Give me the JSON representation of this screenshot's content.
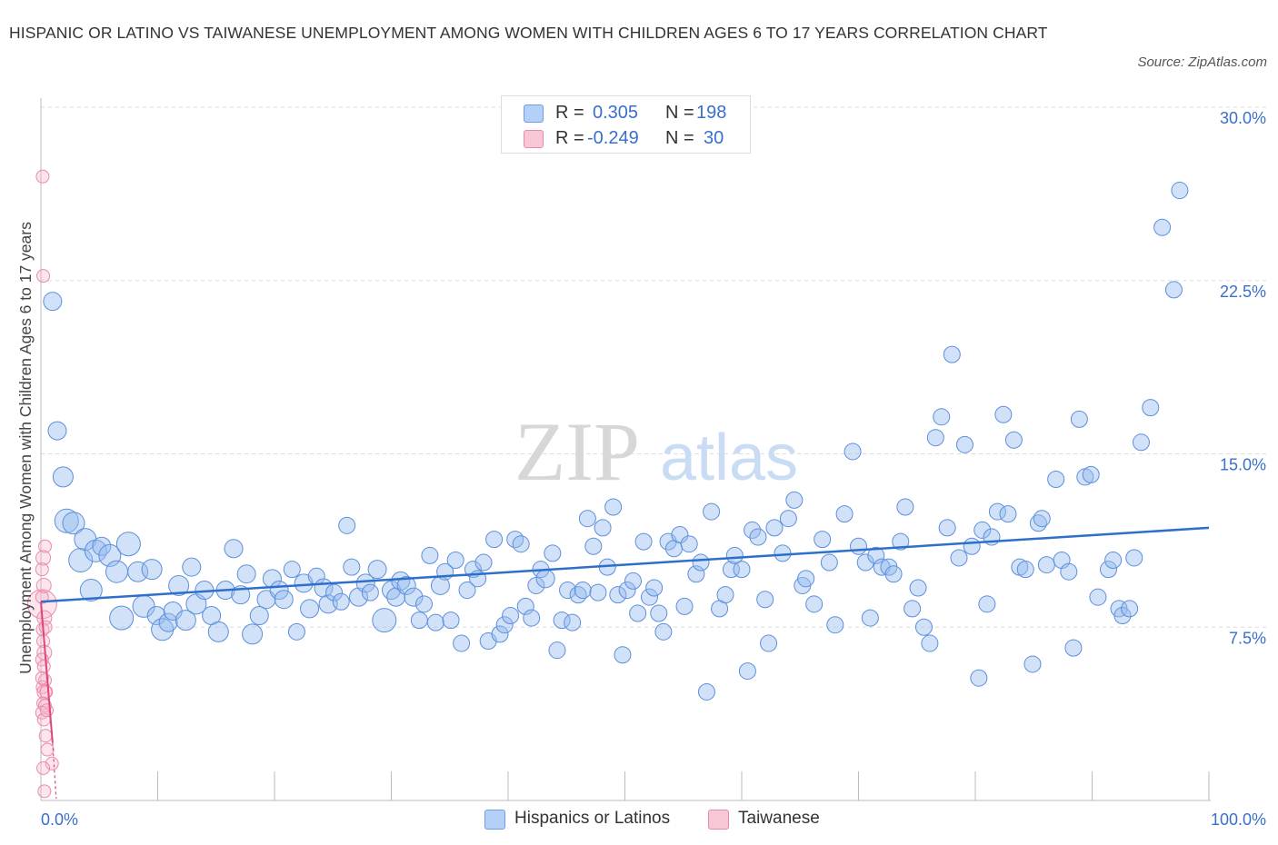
{
  "title": "HISPANIC OR LATINO VS TAIWANESE UNEMPLOYMENT AMONG WOMEN WITH CHILDREN AGES 6 TO 17 YEARS CORRELATION CHART",
  "source": "Source: ZipAtlas.com",
  "watermark": {
    "zip": "ZIP",
    "atlas": "atlas"
  },
  "legend": {
    "r_label": "R =",
    "n_label": "N =",
    "rows": [
      {
        "name": "Hispanics or Latinos",
        "r": "0.305",
        "n": "198",
        "fill": "#aac8f5",
        "stroke": "#6d9de6"
      },
      {
        "name": "Taiwanese",
        "r": "-0.249",
        "n": "30",
        "fill": "#f7c0d0",
        "stroke": "#e88aa6"
      }
    ]
  },
  "colors": {
    "blue_point_fill": "rgba(150,188,240,0.45)",
    "blue_point_stroke": "#5d8fdc",
    "blue_line": "#2f6fcc",
    "pink_point_fill": "rgba(247,180,200,0.35)",
    "pink_point_stroke": "#ec8aa8",
    "pink_line": "#e0457a",
    "axis_label": "#3a6fcb",
    "grid": "#dcdcdc"
  },
  "chart_data": {
    "type": "scatter",
    "title": "HISPANIC OR LATINO VS TAIWANESE UNEMPLOYMENT AMONG WOMEN WITH CHILDREN AGES 6 TO 17 YEARS CORRELATION CHART",
    "xlabel": "",
    "ylabel": "Unemployment Among Women with Children Ages 6 to 17 years",
    "xlim": [
      0,
      100
    ],
    "ylim": [
      0,
      30
    ],
    "x_tick_labels": [
      "0.0%",
      "100.0%"
    ],
    "y_ticks": [
      7.5,
      15.0,
      22.5,
      30.0
    ],
    "y_tick_labels": [
      "7.5%",
      "15.0%",
      "22.5%",
      "30.0%"
    ],
    "grid": true,
    "legend_position": "top-center",
    "series": [
      {
        "name": "Hispanics or Latinos",
        "trend": {
          "x0": 0,
          "y0": 8.6,
          "x1": 100,
          "y1": 11.8
        },
        "points": [
          [
            1,
            21.6,
            10
          ],
          [
            1.4,
            16,
            10
          ],
          [
            1.9,
            14,
            11
          ],
          [
            2.2,
            12.1,
            13
          ],
          [
            2.8,
            12,
            12
          ],
          [
            3.4,
            10.4,
            13
          ],
          [
            3.8,
            11.3,
            12
          ],
          [
            4.3,
            9.1,
            12
          ],
          [
            4.7,
            10.8,
            12
          ],
          [
            5.2,
            11,
            10
          ],
          [
            5.9,
            10.6,
            12
          ],
          [
            6.5,
            9.9,
            12
          ],
          [
            6.9,
            7.9,
            13
          ],
          [
            7.5,
            11.1,
            13
          ],
          [
            8.3,
            9.9,
            11
          ],
          [
            8.8,
            8.4,
            12
          ],
          [
            9.5,
            10,
            11
          ],
          [
            9.9,
            8,
            10
          ],
          [
            10.4,
            7.4,
            12
          ],
          [
            10.9,
            7.7,
            10
          ],
          [
            11.3,
            8.2,
            10
          ],
          [
            11.8,
            9.3,
            11
          ],
          [
            12.4,
            7.8,
            11
          ],
          [
            12.9,
            10.1,
            10
          ],
          [
            13.3,
            8.5,
            11
          ],
          [
            14,
            9.1,
            10
          ],
          [
            14.6,
            8,
            10
          ],
          [
            15.2,
            7.3,
            11
          ],
          [
            15.8,
            9.1,
            10
          ],
          [
            16.5,
            10.9,
            10
          ],
          [
            17.1,
            8.9,
            10
          ],
          [
            17.6,
            9.8,
            10
          ],
          [
            18.1,
            7.2,
            11
          ],
          [
            18.7,
            8,
            10
          ],
          [
            19.3,
            8.7,
            10
          ],
          [
            19.8,
            9.6,
            10
          ],
          [
            20.4,
            9.1,
            10
          ],
          [
            20.8,
            8.7,
            10
          ],
          [
            21.5,
            10,
            9
          ],
          [
            21.9,
            7.3,
            9
          ],
          [
            22.5,
            9.4,
            10
          ],
          [
            23,
            8.3,
            10
          ],
          [
            23.6,
            9.7,
            9
          ],
          [
            24.2,
            9.2,
            10
          ],
          [
            24.6,
            8.5,
            10
          ],
          [
            25.1,
            9,
            9
          ],
          [
            25.7,
            8.6,
            9
          ],
          [
            26.2,
            11.9,
            9
          ],
          [
            26.6,
            10.1,
            9
          ],
          [
            27.2,
            8.8,
            10
          ],
          [
            27.8,
            9.4,
            10
          ],
          [
            28.2,
            9,
            9
          ],
          [
            28.8,
            10,
            10
          ],
          [
            29.4,
            7.8,
            13
          ],
          [
            30,
            9.1,
            10
          ],
          [
            30.4,
            8.8,
            10
          ],
          [
            30.8,
            9.5,
            10
          ],
          [
            31.3,
            9.3,
            10
          ],
          [
            31.9,
            8.8,
            10
          ],
          [
            32.4,
            7.8,
            9
          ],
          [
            32.8,
            8.5,
            9
          ],
          [
            33.3,
            10.6,
            9
          ],
          [
            33.8,
            7.7,
            9
          ],
          [
            34.2,
            9.3,
            10
          ],
          [
            34.6,
            9.9,
            9
          ],
          [
            35.1,
            7.8,
            9
          ],
          [
            35.5,
            10.4,
            9
          ],
          [
            36,
            6.8,
            9
          ],
          [
            36.5,
            9.1,
            9
          ],
          [
            37,
            10,
            9
          ],
          [
            37.4,
            9.6,
            9
          ],
          [
            37.9,
            10.3,
            9
          ],
          [
            38.3,
            6.9,
            9
          ],
          [
            38.8,
            11.3,
            9
          ],
          [
            39.3,
            7.2,
            9
          ],
          [
            39.7,
            7.6,
            9
          ],
          [
            40.2,
            8,
            9
          ],
          [
            40.6,
            11.3,
            9
          ],
          [
            41.1,
            11.1,
            9
          ],
          [
            41.5,
            8.4,
            9
          ],
          [
            42,
            7.9,
            9
          ],
          [
            42.4,
            9.3,
            9
          ],
          [
            42.8,
            10,
            9
          ],
          [
            43.2,
            9.6,
            10
          ],
          [
            43.8,
            10.7,
            9
          ],
          [
            44.2,
            6.5,
            9
          ],
          [
            44.6,
            7.8,
            9
          ],
          [
            45.1,
            9.1,
            9
          ],
          [
            45.5,
            7.7,
            9
          ],
          [
            46,
            8.9,
            9
          ],
          [
            46.4,
            9.1,
            9
          ],
          [
            46.8,
            12.2,
            9
          ],
          [
            47.3,
            11,
            9
          ],
          [
            47.7,
            9,
            9
          ],
          [
            48.1,
            11.8,
            9
          ],
          [
            48.5,
            10.1,
            9
          ],
          [
            49,
            12.7,
            9
          ],
          [
            49.4,
            8.9,
            9
          ],
          [
            49.8,
            6.3,
            9
          ],
          [
            50.2,
            9.1,
            9
          ],
          [
            50.7,
            9.5,
            9
          ],
          [
            51.1,
            8.1,
            9
          ],
          [
            51.6,
            11.2,
            9
          ],
          [
            52.1,
            8.8,
            9
          ],
          [
            52.5,
            9.2,
            9
          ],
          [
            52.9,
            8.1,
            9
          ],
          [
            53.3,
            7.3,
            9
          ],
          [
            53.7,
            11.2,
            9
          ],
          [
            54.2,
            10.9,
            9
          ],
          [
            54.7,
            11.5,
            9
          ],
          [
            55.1,
            8.4,
            9
          ],
          [
            55.5,
            11.1,
            9
          ],
          [
            56.1,
            9.8,
            9
          ],
          [
            56.5,
            10.3,
            9
          ],
          [
            57,
            4.7,
            9
          ],
          [
            57.4,
            12.5,
            9
          ],
          [
            58.1,
            8.3,
            9
          ],
          [
            58.6,
            8.9,
            9
          ],
          [
            59.1,
            10,
            9
          ],
          [
            59.4,
            10.6,
            9
          ],
          [
            60,
            10,
            9
          ],
          [
            60.5,
            5.6,
            9
          ],
          [
            60.9,
            11.7,
            9
          ],
          [
            61.4,
            11.4,
            9
          ],
          [
            62,
            8.7,
            9
          ],
          [
            62.3,
            6.8,
            9
          ],
          [
            62.8,
            11.8,
            9
          ],
          [
            63.5,
            10.7,
            9
          ],
          [
            64,
            12.2,
            9
          ],
          [
            64.5,
            13,
            9
          ],
          [
            65.2,
            9.3,
            9
          ],
          [
            65.5,
            9.6,
            9
          ],
          [
            66.2,
            8.5,
            9
          ],
          [
            66.9,
            11.3,
            9
          ],
          [
            67.5,
            10.3,
            9
          ],
          [
            68,
            7.6,
            9
          ],
          [
            68.8,
            12.4,
            9
          ],
          [
            69.5,
            15.1,
            9
          ],
          [
            70,
            11,
            9
          ],
          [
            70.6,
            10.3,
            9
          ],
          [
            71,
            7.9,
            9
          ],
          [
            71.5,
            10.6,
            9
          ],
          [
            72,
            10.1,
            9
          ],
          [
            72.6,
            10.1,
            9
          ],
          [
            73,
            9.8,
            9
          ],
          [
            73.6,
            11.2,
            9
          ],
          [
            74,
            12.7,
            9
          ],
          [
            74.6,
            8.3,
            9
          ],
          [
            75.1,
            9.2,
            9
          ],
          [
            75.6,
            7.5,
            9
          ],
          [
            76.1,
            6.8,
            9
          ],
          [
            76.6,
            15.7,
            9
          ],
          [
            77.1,
            16.6,
            9
          ],
          [
            77.6,
            11.8,
            9
          ],
          [
            78,
            19.3,
            9
          ],
          [
            78.6,
            10.5,
            9
          ],
          [
            79.1,
            15.4,
            9
          ],
          [
            79.7,
            11,
            9
          ],
          [
            80.3,
            5.3,
            9
          ],
          [
            80.6,
            11.7,
            9
          ],
          [
            81,
            8.5,
            9
          ],
          [
            81.4,
            11.4,
            9
          ],
          [
            81.9,
            12.5,
            9
          ],
          [
            82.4,
            16.7,
            9
          ],
          [
            82.8,
            12.4,
            9
          ],
          [
            83.3,
            15.6,
            9
          ],
          [
            83.8,
            10.1,
            9
          ],
          [
            84.3,
            10,
            9
          ],
          [
            84.9,
            5.9,
            9
          ],
          [
            85.4,
            12,
            9
          ],
          [
            85.7,
            12.2,
            9
          ],
          [
            86.1,
            10.2,
            9
          ],
          [
            86.9,
            13.9,
            9
          ],
          [
            87.4,
            10.4,
            9
          ],
          [
            88,
            9.9,
            9
          ],
          [
            88.4,
            6.6,
            9
          ],
          [
            88.9,
            16.5,
            9
          ],
          [
            89.4,
            14,
            9
          ],
          [
            89.9,
            14.1,
            9
          ],
          [
            90.5,
            8.8,
            9
          ],
          [
            91.4,
            10,
            9
          ],
          [
            91.8,
            10.4,
            9
          ],
          [
            92.3,
            8.3,
            9
          ],
          [
            92.6,
            8,
            9
          ],
          [
            93.2,
            8.3,
            9
          ],
          [
            93.6,
            10.5,
            9
          ],
          [
            94.2,
            15.5,
            9
          ],
          [
            95,
            17,
            9
          ],
          [
            96,
            24.8,
            9
          ],
          [
            97,
            22.1,
            9
          ],
          [
            97.5,
            26.4,
            9
          ]
        ]
      },
      {
        "name": "Taiwanese",
        "trend": {
          "x0": 0,
          "y0": 8.6,
          "x1": 1,
          "y1": 2.5
        },
        "points": [
          [
            0.1,
            8.5,
            16
          ],
          [
            0.15,
            27,
            7
          ],
          [
            0.2,
            22.7,
            7
          ],
          [
            0.35,
            11,
            7
          ],
          [
            0.2,
            10.5,
            8
          ],
          [
            0.1,
            10,
            7
          ],
          [
            0.25,
            9.3,
            8
          ],
          [
            0.1,
            8.8,
            7
          ],
          [
            0.3,
            7.9,
            8
          ],
          [
            0.15,
            7.4,
            7
          ],
          [
            0.4,
            7.5,
            7
          ],
          [
            0.2,
            6.9,
            7
          ],
          [
            0.3,
            6.4,
            8
          ],
          [
            0.1,
            6.1,
            7
          ],
          [
            0.25,
            5.8,
            7
          ],
          [
            0.35,
            5.2,
            7
          ],
          [
            0.15,
            4.9,
            7
          ],
          [
            0.3,
            4.7,
            8
          ],
          [
            0.45,
            4.7,
            7
          ],
          [
            0.2,
            4.2,
            7
          ],
          [
            0.35,
            4.1,
            7
          ],
          [
            0.1,
            3.8,
            7
          ],
          [
            0.25,
            3.5,
            7
          ],
          [
            0.4,
            2.8,
            7
          ],
          [
            0.55,
            2.2,
            7
          ],
          [
            0.95,
            1.6,
            7
          ],
          [
            0.3,
            0.4,
            7
          ],
          [
            0.2,
            1.4,
            7
          ],
          [
            0.1,
            5.3,
            7
          ],
          [
            0.5,
            3.9,
            7
          ]
        ]
      }
    ]
  }
}
